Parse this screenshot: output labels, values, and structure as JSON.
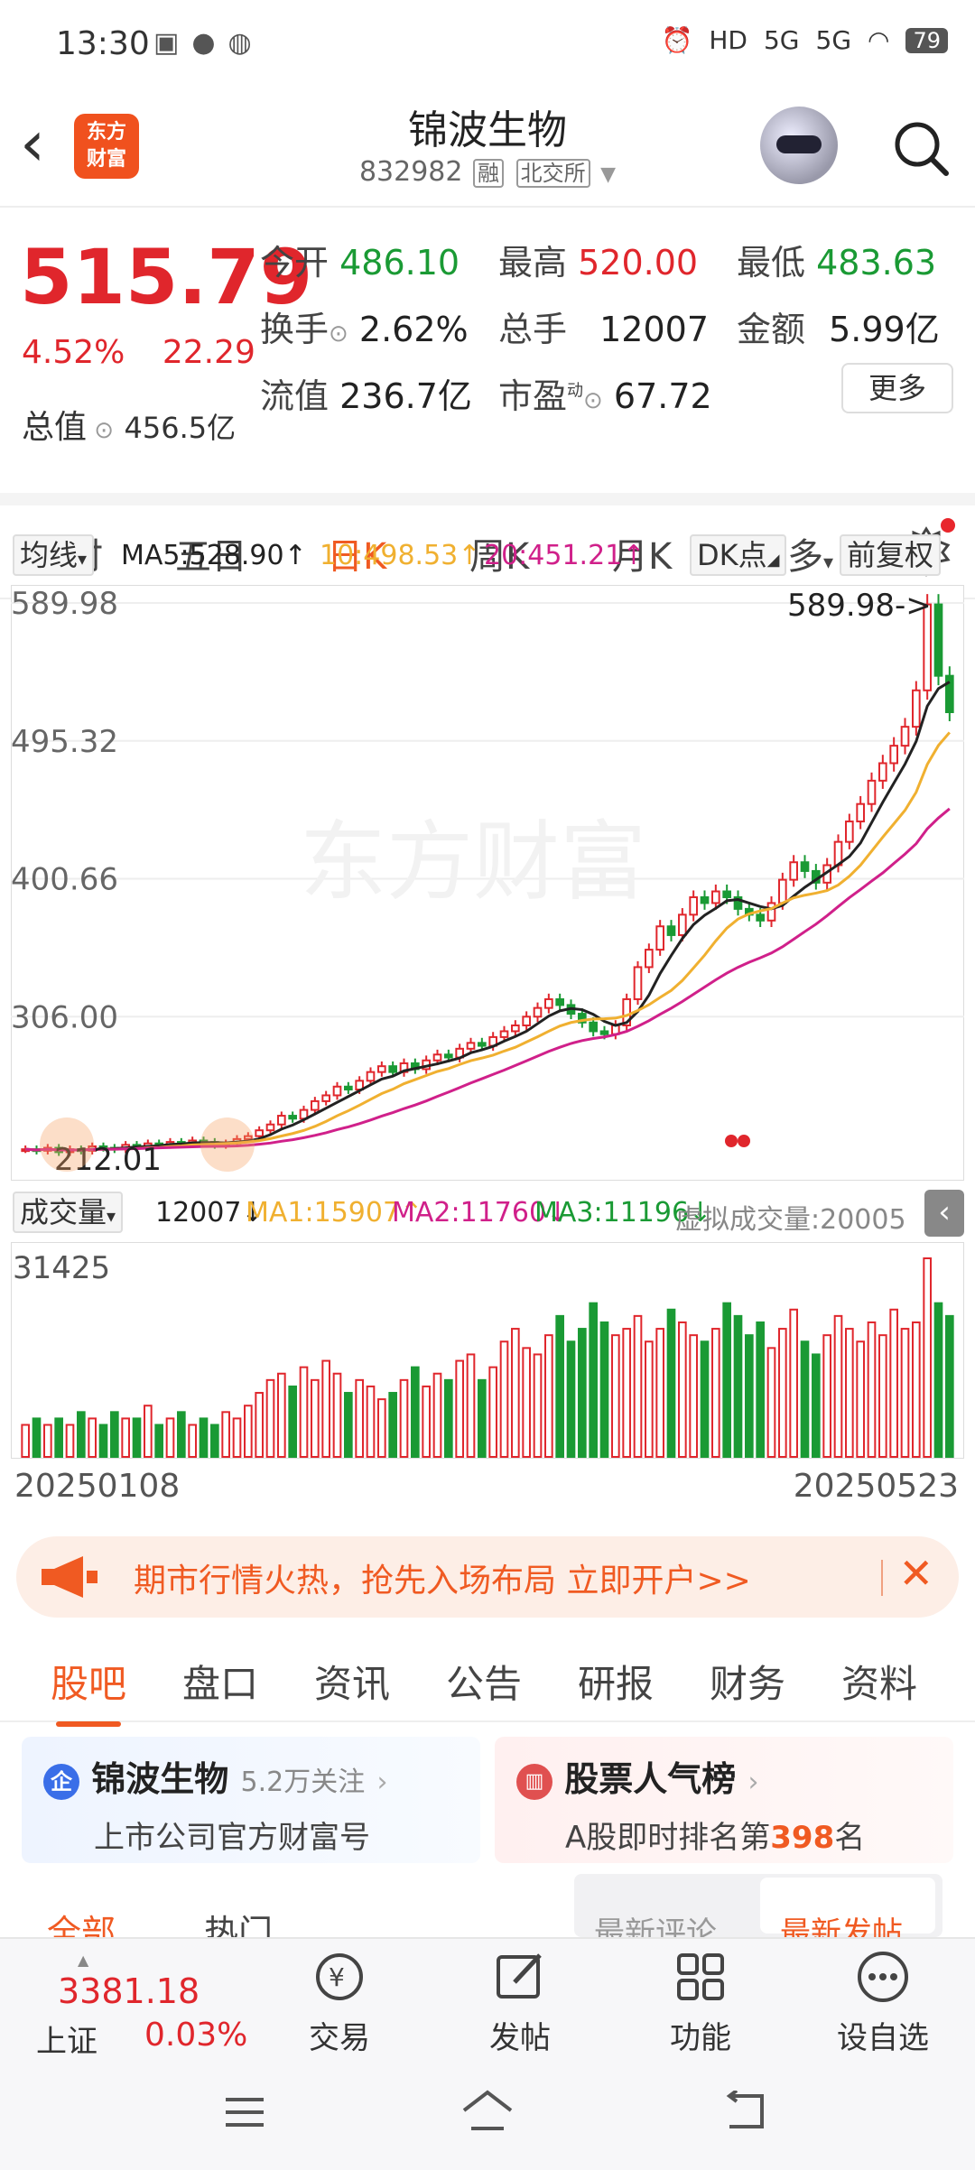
{
  "status_bar": {
    "time": "13:30",
    "battery": "79",
    "signal1": "5G",
    "signal2": "5G",
    "hd": "HD"
  },
  "header": {
    "back_label": "<",
    "logo_line1": "东方",
    "logo_line2": "财富",
    "stock_name": "锦波生物",
    "stock_code": "832982",
    "tag_margin": "融",
    "tag_exchange": "北交所"
  },
  "quote": {
    "price": "515.79",
    "change_pct": "4.52%",
    "change_abs": "22.29",
    "open_label": "今开",
    "open": "486.10",
    "high_label": "最高",
    "high": "520.00",
    "low_label": "最低",
    "low": "483.63",
    "turnover_label": "换手",
    "turnover": "2.62%",
    "volume_label": "总手",
    "volume": "12007",
    "amount_label": "金额",
    "amount": "5.99亿",
    "mktcap_label": "总值",
    "mktcap": "456.5亿",
    "float_label": "流值",
    "float_cap": "236.7亿",
    "pe_label": "市盈",
    "pe_sup": "动",
    "pe": "67.72",
    "more_label": "更多"
  },
  "chart_tabs": [
    "分时",
    "五日",
    "日K",
    "周K",
    "月K",
    "更多"
  ],
  "ma_row": {
    "ma_label": "均线",
    "ma5": "MA5:528.90↑",
    "ma10": "10:498.53↑",
    "ma20": "20:451.21↑",
    "dk_label": "DK点",
    "adjust_label": "前复权"
  },
  "colors": {
    "up": "#e0262c",
    "down": "#1a9a34",
    "accent": "#f05a22",
    "ma5": "#222222",
    "ma10": "#f0b030",
    "ma20": "#d0208a"
  },
  "chart_data": {
    "type": "candlestick",
    "y_labels": [
      "589.98",
      "495.32",
      "400.66",
      "306.00"
    ],
    "high_marker": "589.98->",
    "low_marker": "212.01",
    "ylim": [
      212.01,
      589.98
    ],
    "watermark": "东方财富",
    "closes": [
      215,
      214,
      216,
      213,
      215,
      214,
      217,
      216,
      215,
      218,
      217,
      219,
      218,
      220,
      219,
      221,
      220,
      218,
      219,
      222,
      224,
      228,
      232,
      238,
      236,
      242,
      248,
      252,
      258,
      256,
      262,
      268,
      272,
      268,
      274,
      270,
      276,
      280,
      278,
      284,
      288,
      286,
      292,
      296,
      300,
      306,
      312,
      318,
      314,
      308,
      302,
      296,
      294,
      300,
      318,
      340,
      352,
      368,
      362,
      376,
      388,
      384,
      392,
      388,
      380,
      376,
      372,
      384,
      400,
      412,
      406,
      398,
      410,
      426,
      440,
      452,
      468,
      480,
      492,
      505,
      530,
      589,
      540,
      515
    ]
  },
  "volume": {
    "label": "成交量",
    "current": "12007↓",
    "ma1": "MA1:15907↑",
    "ma2": "MA2:11760↓",
    "ma3": "MA3:11196↓",
    "virtual": "虚拟成交量:20005",
    "ymax_label": "31425",
    "values": [
      5,
      6,
      5,
      6,
      5,
      7,
      6,
      5,
      7,
      6,
      6,
      8,
      5,
      6,
      7,
      5,
      6,
      5,
      7,
      6,
      8,
      10,
      12,
      13,
      11,
      14,
      12,
      15,
      13,
      10,
      12,
      11,
      9,
      10,
      12,
      14,
      11,
      13,
      12,
      15,
      16,
      12,
      14,
      18,
      20,
      17,
      16,
      19,
      22,
      18,
      20,
      24,
      21,
      19,
      20,
      22,
      18,
      20,
      23,
      21,
      19,
      18,
      20,
      24,
      22,
      19,
      21,
      17,
      20,
      23,
      18,
      16,
      19,
      22,
      20,
      18,
      21,
      19,
      23,
      20,
      21,
      31,
      24,
      22
    ]
  },
  "dates": {
    "start": "20250108",
    "end": "20250523"
  },
  "ad": {
    "text": "期市行情火热，抢先入场布局 立即开户>>"
  },
  "section_tabs": [
    "股吧",
    "盘口",
    "资讯",
    "公告",
    "研报",
    "财务",
    "资料"
  ],
  "cards": {
    "left_title": "锦波生物",
    "left_follow": "5.2万关注",
    "left_sub": "上市公司官方财富号",
    "right_title": "股票人气榜",
    "right_sub_prefix": "A股即时排名第",
    "right_rank": "398",
    "right_sub_suffix": "名"
  },
  "partial_row": {
    "all": "全部",
    "hot": "热门",
    "latest_reply": "最新评论",
    "latest_post": "最新发帖"
  },
  "bottom_bar": {
    "index_value": "3381.18",
    "index_name": "上证",
    "index_change": "0.03%",
    "trade": "交易",
    "post": "发帖",
    "function": "功能",
    "watchlist": "设自选"
  }
}
